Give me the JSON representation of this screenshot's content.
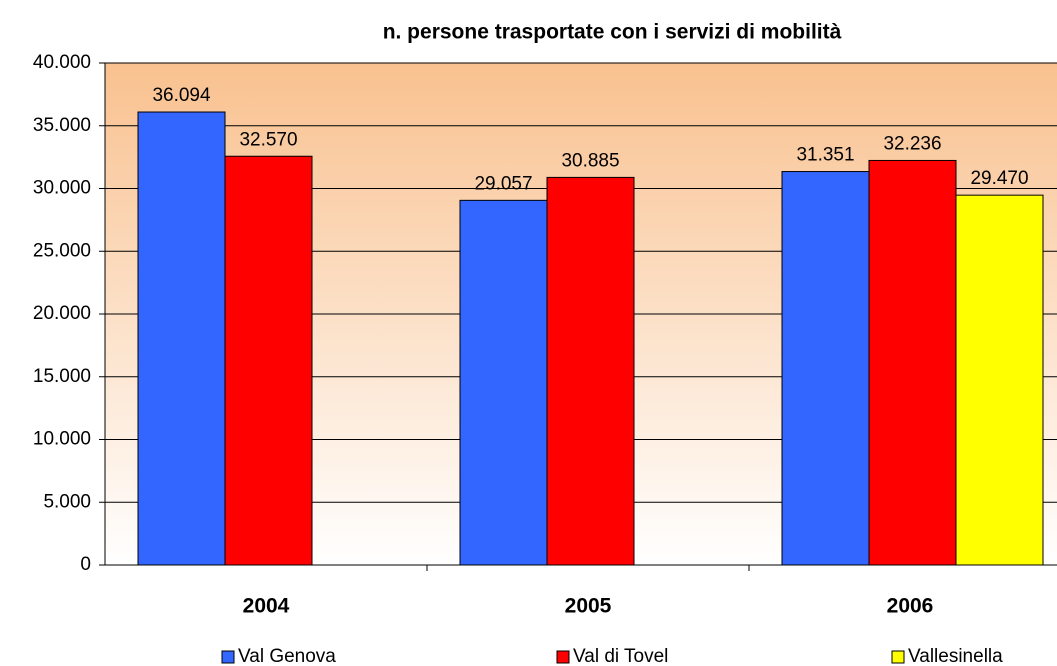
{
  "chart_data": {
    "type": "bar",
    "title": "n. persone trasportate con i servizi di mobilità",
    "categories": [
      "2004",
      "2005",
      "2006"
    ],
    "series": [
      {
        "name": "Val Genova",
        "color": "#3366ff",
        "values": [
          36094,
          29057,
          31351
        ],
        "value_labels": [
          "36.094",
          "29.057",
          "31.351"
        ]
      },
      {
        "name": "Val di Tovel",
        "color": "#ff0000",
        "values": [
          32570,
          30885,
          32236
        ],
        "value_labels": [
          "32.570",
          "30.885",
          "32.236"
        ]
      },
      {
        "name": "Vallesinella",
        "color": "#ffff00",
        "values": [
          null,
          null,
          29470
        ],
        "value_labels": [
          null,
          null,
          "29.470"
        ]
      }
    ],
    "ylim": [
      0,
      40000
    ],
    "yticks": [
      0,
      {
        "value": 5000,
        "label": "5.000"
      },
      {
        "value": 10000,
        "label": "10.000"
      },
      {
        "value": 15000,
        "label": "15.000"
      },
      {
        "value": 20000,
        "label": "20.000"
      },
      {
        "value": 25000,
        "label": "25.000"
      },
      {
        "value": 30000,
        "label": "30.000"
      },
      {
        "value": 35000,
        "label": "35.000"
      },
      {
        "value": 40000,
        "label": "40.000"
      }
    ],
    "grid": true,
    "legend": "bottom"
  }
}
